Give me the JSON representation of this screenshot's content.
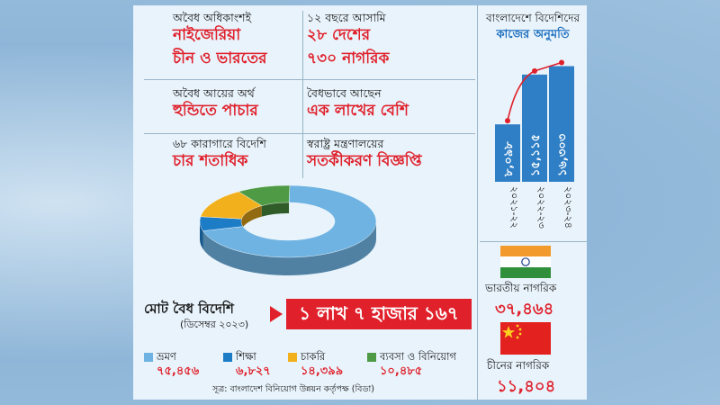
{
  "colors": {
    "red": "#e0202b",
    "bar": "#2f7fc6",
    "tourism": "#6fb3e3",
    "education": "#1d7cc6",
    "job": "#f2b01c",
    "business": "#4e9a45"
  },
  "facts": [
    {
      "line1": "অবৈধ অধিকাংশই",
      "line2": "নাইজেরিয়া",
      "line3": "চীন ও ভারতের"
    },
    {
      "line1": "১২ বছরে আসামি",
      "line2": "২৮ দেশের",
      "line3": "৭৩০ নাগরিক"
    },
    {
      "line1": "অবৈধ আয়ের অর্থ",
      "line2": "হুন্ডিতে পাচার"
    },
    {
      "line1": "বৈধভাবে আছেন",
      "line2": "এক লাখের বেশি"
    },
    {
      "line1": "৬৮ কারাগারে বিদেশি",
      "line2": "চার শতাধিক"
    },
    {
      "line1": "স্বরাষ্ট্র মন্ত্রণালয়ের",
      "line2": "সতর্কীকরণ বিজ্ঞপ্তি"
    }
  ],
  "total": {
    "label": "মোট বৈধ বিদেশি",
    "sub": "(ডিসেম্বর ২০২৩)",
    "value": "১ লাখ ৭ হাজার ১৬৭"
  },
  "source": "সূত্র: বাংলাদেশ বিনিয়োগ উন্নয়ন কর্তৃপক্ষ (বিডা)",
  "india": {
    "label": "ভারতীয় নাগরিক",
    "value": "৩৭,৪৬৪"
  },
  "china": {
    "label": "চীনের নাগরিক",
    "value": "১১,৪০৪"
  },
  "chart_data": [
    {
      "type": "pie",
      "categories": [
        "ভ্রমণ",
        "শিক্ষা",
        "চাকরি",
        "ব্যবসা ও বিনিয়োগ"
      ],
      "value_labels": [
        "৭৫,৪৫৬",
        "৬,৮২৭",
        "১৪,৩৯৯",
        "১০,৪৮৫"
      ],
      "values": [
        75456,
        6827,
        14399,
        10485
      ],
      "colors": [
        "#6fb3e3",
        "#1d7cc6",
        "#f2b01c",
        "#4e9a45"
      ],
      "style": "3d-donut",
      "legend": "bottom"
    },
    {
      "type": "bar",
      "title": "বাংলাদেশে বিদেশিদের",
      "subtitle": "কাজের অনুমতি",
      "categories": [
        "২০২১-২২",
        "২০২২-২৩",
        "২০২৩-২৪"
      ],
      "values": [
        8098,
        15115,
        16303
      ],
      "value_labels": [
        "৮,০৯৮",
        "১৫,১১৫",
        "১৬,৩০৩"
      ],
      "ylim": [
        0,
        17000
      ],
      "overlay_line": true
    }
  ]
}
